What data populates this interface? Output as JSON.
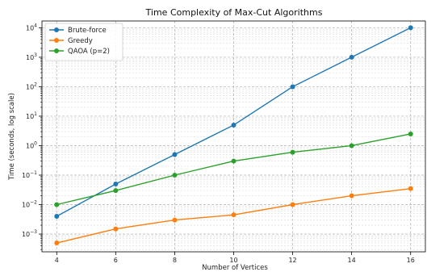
{
  "chart_data": {
    "type": "line",
    "title": "Time Complexity of Max-Cut Algorithms",
    "xlabel": "Number of Vertices",
    "ylabel": "Time (seconds, log scale)",
    "x": [
      4,
      6,
      8,
      10,
      12,
      14,
      16
    ],
    "xlim": [
      3.5,
      16.5
    ],
    "ylim": [
      0.00025,
      17000
    ],
    "yscale": "log",
    "x_ticks": [
      4,
      6,
      8,
      10,
      12,
      14,
      16
    ],
    "y_tick_exponents": [
      -3,
      -2,
      -1,
      0,
      1,
      2,
      3,
      4
    ],
    "grid": true,
    "grid_style": "dashed",
    "legend_position": "top-left",
    "series": [
      {
        "name": "Brute-force",
        "color": "#1f77b4",
        "values": [
          0.004,
          0.05,
          0.5,
          5,
          100,
          1000,
          10000
        ]
      },
      {
        "name": "Greedy",
        "color": "#ff7f0e",
        "values": [
          0.0005,
          0.0015,
          0.003,
          0.0045,
          0.01,
          0.02,
          0.035
        ]
      },
      {
        "name": "QAOA (p=2)",
        "color": "#2ca02c",
        "values": [
          0.01,
          0.03,
          0.1,
          0.3,
          0.6,
          1.0,
          2.5
        ]
      }
    ]
  }
}
